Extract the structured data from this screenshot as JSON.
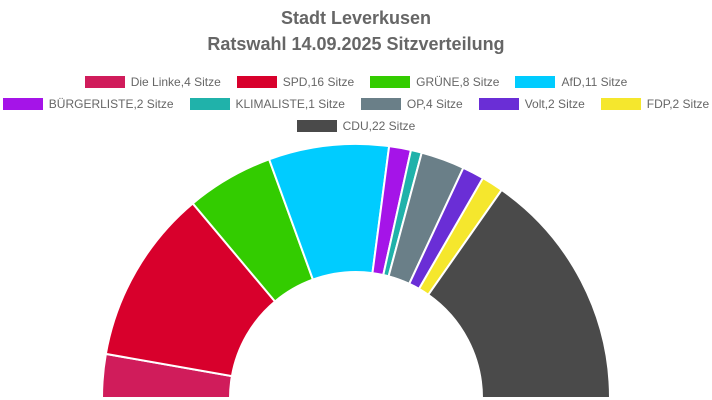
{
  "title_line_1": "Stadt Leverkusen",
  "title_line_2": "Ratswahl 14.09.2025 Sitzverteilung",
  "chart_data": {
    "type": "pie",
    "subtype": "half-donut (parliament seats)",
    "title": "Stadt Leverkusen Ratswahl 14.09.2025 Sitzverteilung",
    "legend_position": "top",
    "unit": "Sitze",
    "series": [
      {
        "name": "Die Linke",
        "value": 4,
        "color": "#d01c5b",
        "legend_label": "Die Linke,4 Sitze"
      },
      {
        "name": "SPD",
        "value": 16,
        "color": "#d8002c",
        "legend_label": "SPD,16 Sitze"
      },
      {
        "name": "GRÜNE",
        "value": 8,
        "color": "#33cc00",
        "legend_label": "GRÜNE,8 Sitze"
      },
      {
        "name": "AfD",
        "value": 11,
        "color": "#00ccff",
        "legend_label": "AfD,11 Sitze"
      },
      {
        "name": "BÜRGERLISTE",
        "value": 2,
        "color": "#a514e8",
        "legend_label": "BÜRGERLISTE,2 Sitze"
      },
      {
        "name": "KLIMALISTE",
        "value": 1,
        "color": "#20b2aa",
        "legend_label": "KLIMALISTE,1 Sitze"
      },
      {
        "name": "OP",
        "value": 4,
        "color": "#6a7f88",
        "legend_label": "OP,4 Sitze"
      },
      {
        "name": "Volt",
        "value": 2,
        "color": "#6a2ed6",
        "legend_label": "Volt,2 Sitze"
      },
      {
        "name": "FDP",
        "value": 2,
        "color": "#f5e72d",
        "legend_label": "FDP,2 Sitze"
      },
      {
        "name": "CDU",
        "value": 22,
        "color": "#4a4a4a",
        "legend_label": "CDU,22 Sitze"
      }
    ],
    "legend_rows": [
      [
        "Die Linke",
        "SPD",
        "GRÜNE",
        "AfD"
      ],
      [
        "BÜRGERLISTE",
        "KLIMALISTE",
        "OP",
        "Volt",
        "FDP"
      ],
      [
        "CDU"
      ]
    ]
  }
}
